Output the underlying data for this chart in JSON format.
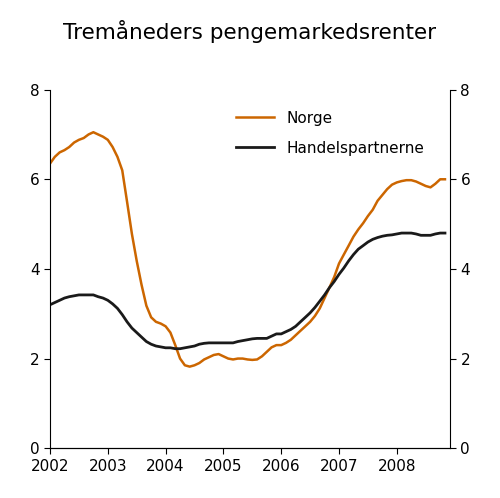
{
  "title": "Tremåneders pengemarkedsrenter",
  "norge_color": "#CC6600",
  "handels_color": "#1a1a1a",
  "ylim": [
    0,
    8
  ],
  "yticks": [
    0,
    2,
    4,
    6,
    8
  ],
  "xticks": [
    2002,
    2003,
    2004,
    2005,
    2006,
    2007,
    2008
  ],
  "xlabel_years": [
    "2002",
    "2003",
    "2004",
    "2005",
    "2006",
    "2007",
    "2008"
  ],
  "legend_norge": "Norge",
  "legend_handels": "Handelspartnerne",
  "xlim": [
    2002.0,
    2008.92
  ],
  "norge": {
    "x": [
      2002.0,
      2002.083,
      2002.167,
      2002.25,
      2002.333,
      2002.417,
      2002.5,
      2002.583,
      2002.667,
      2002.75,
      2002.833,
      2002.917,
      2003.0,
      2003.083,
      2003.167,
      2003.25,
      2003.333,
      2003.417,
      2003.5,
      2003.583,
      2003.667,
      2003.75,
      2003.833,
      2003.917,
      2004.0,
      2004.083,
      2004.167,
      2004.25,
      2004.333,
      2004.417,
      2004.5,
      2004.583,
      2004.667,
      2004.75,
      2004.833,
      2004.917,
      2005.0,
      2005.083,
      2005.167,
      2005.25,
      2005.333,
      2005.417,
      2005.5,
      2005.583,
      2005.667,
      2005.75,
      2005.833,
      2005.917,
      2006.0,
      2006.083,
      2006.167,
      2006.25,
      2006.333,
      2006.417,
      2006.5,
      2006.583,
      2006.667,
      2006.75,
      2006.833,
      2006.917,
      2007.0,
      2007.083,
      2007.167,
      2007.25,
      2007.333,
      2007.417,
      2007.5,
      2007.583,
      2007.667,
      2007.75,
      2007.833,
      2007.917,
      2008.0,
      2008.083,
      2008.167,
      2008.25,
      2008.333,
      2008.417,
      2008.5,
      2008.583,
      2008.667,
      2008.75,
      2008.833
    ],
    "y": [
      6.35,
      6.5,
      6.6,
      6.65,
      6.72,
      6.82,
      6.88,
      6.92,
      7.0,
      7.05,
      7.0,
      6.95,
      6.88,
      6.72,
      6.5,
      6.2,
      5.5,
      4.78,
      4.18,
      3.65,
      3.18,
      2.92,
      2.82,
      2.78,
      2.72,
      2.58,
      2.3,
      2.0,
      1.85,
      1.82,
      1.85,
      1.9,
      1.98,
      2.03,
      2.08,
      2.1,
      2.05,
      2.0,
      1.98,
      2.0,
      2.0,
      1.98,
      1.97,
      1.98,
      2.05,
      2.15,
      2.25,
      2.3,
      2.3,
      2.35,
      2.42,
      2.52,
      2.62,
      2.72,
      2.82,
      2.95,
      3.12,
      3.35,
      3.58,
      3.82,
      4.12,
      4.32,
      4.52,
      4.72,
      4.88,
      5.02,
      5.18,
      5.32,
      5.52,
      5.65,
      5.78,
      5.88,
      5.93,
      5.96,
      5.98,
      5.98,
      5.95,
      5.9,
      5.85,
      5.82,
      5.9,
      6.0,
      6.0
    ]
  },
  "handels": {
    "x": [
      2002.0,
      2002.083,
      2002.167,
      2002.25,
      2002.333,
      2002.417,
      2002.5,
      2002.583,
      2002.667,
      2002.75,
      2002.833,
      2002.917,
      2003.0,
      2003.083,
      2003.167,
      2003.25,
      2003.333,
      2003.417,
      2003.5,
      2003.583,
      2003.667,
      2003.75,
      2003.833,
      2003.917,
      2004.0,
      2004.083,
      2004.167,
      2004.25,
      2004.333,
      2004.417,
      2004.5,
      2004.583,
      2004.667,
      2004.75,
      2004.833,
      2004.917,
      2005.0,
      2005.083,
      2005.167,
      2005.25,
      2005.333,
      2005.417,
      2005.5,
      2005.583,
      2005.667,
      2005.75,
      2005.833,
      2005.917,
      2006.0,
      2006.083,
      2006.167,
      2006.25,
      2006.333,
      2006.417,
      2006.5,
      2006.583,
      2006.667,
      2006.75,
      2006.833,
      2006.917,
      2007.0,
      2007.083,
      2007.167,
      2007.25,
      2007.333,
      2007.417,
      2007.5,
      2007.583,
      2007.667,
      2007.75,
      2007.833,
      2007.917,
      2008.0,
      2008.083,
      2008.167,
      2008.25,
      2008.333,
      2008.417,
      2008.5,
      2008.583,
      2008.667,
      2008.75,
      2008.833
    ],
    "y": [
      3.2,
      3.25,
      3.3,
      3.35,
      3.38,
      3.4,
      3.42,
      3.42,
      3.42,
      3.42,
      3.38,
      3.35,
      3.3,
      3.22,
      3.12,
      2.98,
      2.82,
      2.68,
      2.58,
      2.48,
      2.38,
      2.32,
      2.28,
      2.26,
      2.24,
      2.24,
      2.22,
      2.22,
      2.24,
      2.26,
      2.28,
      2.32,
      2.34,
      2.35,
      2.35,
      2.35,
      2.35,
      2.35,
      2.35,
      2.38,
      2.4,
      2.42,
      2.44,
      2.45,
      2.45,
      2.45,
      2.5,
      2.55,
      2.55,
      2.6,
      2.65,
      2.72,
      2.82,
      2.92,
      3.02,
      3.14,
      3.28,
      3.42,
      3.58,
      3.72,
      3.88,
      4.02,
      4.18,
      4.32,
      4.44,
      4.52,
      4.6,
      4.66,
      4.7,
      4.73,
      4.75,
      4.76,
      4.78,
      4.8,
      4.8,
      4.8,
      4.78,
      4.75,
      4.75,
      4.75,
      4.78,
      4.8,
      4.8
    ]
  }
}
